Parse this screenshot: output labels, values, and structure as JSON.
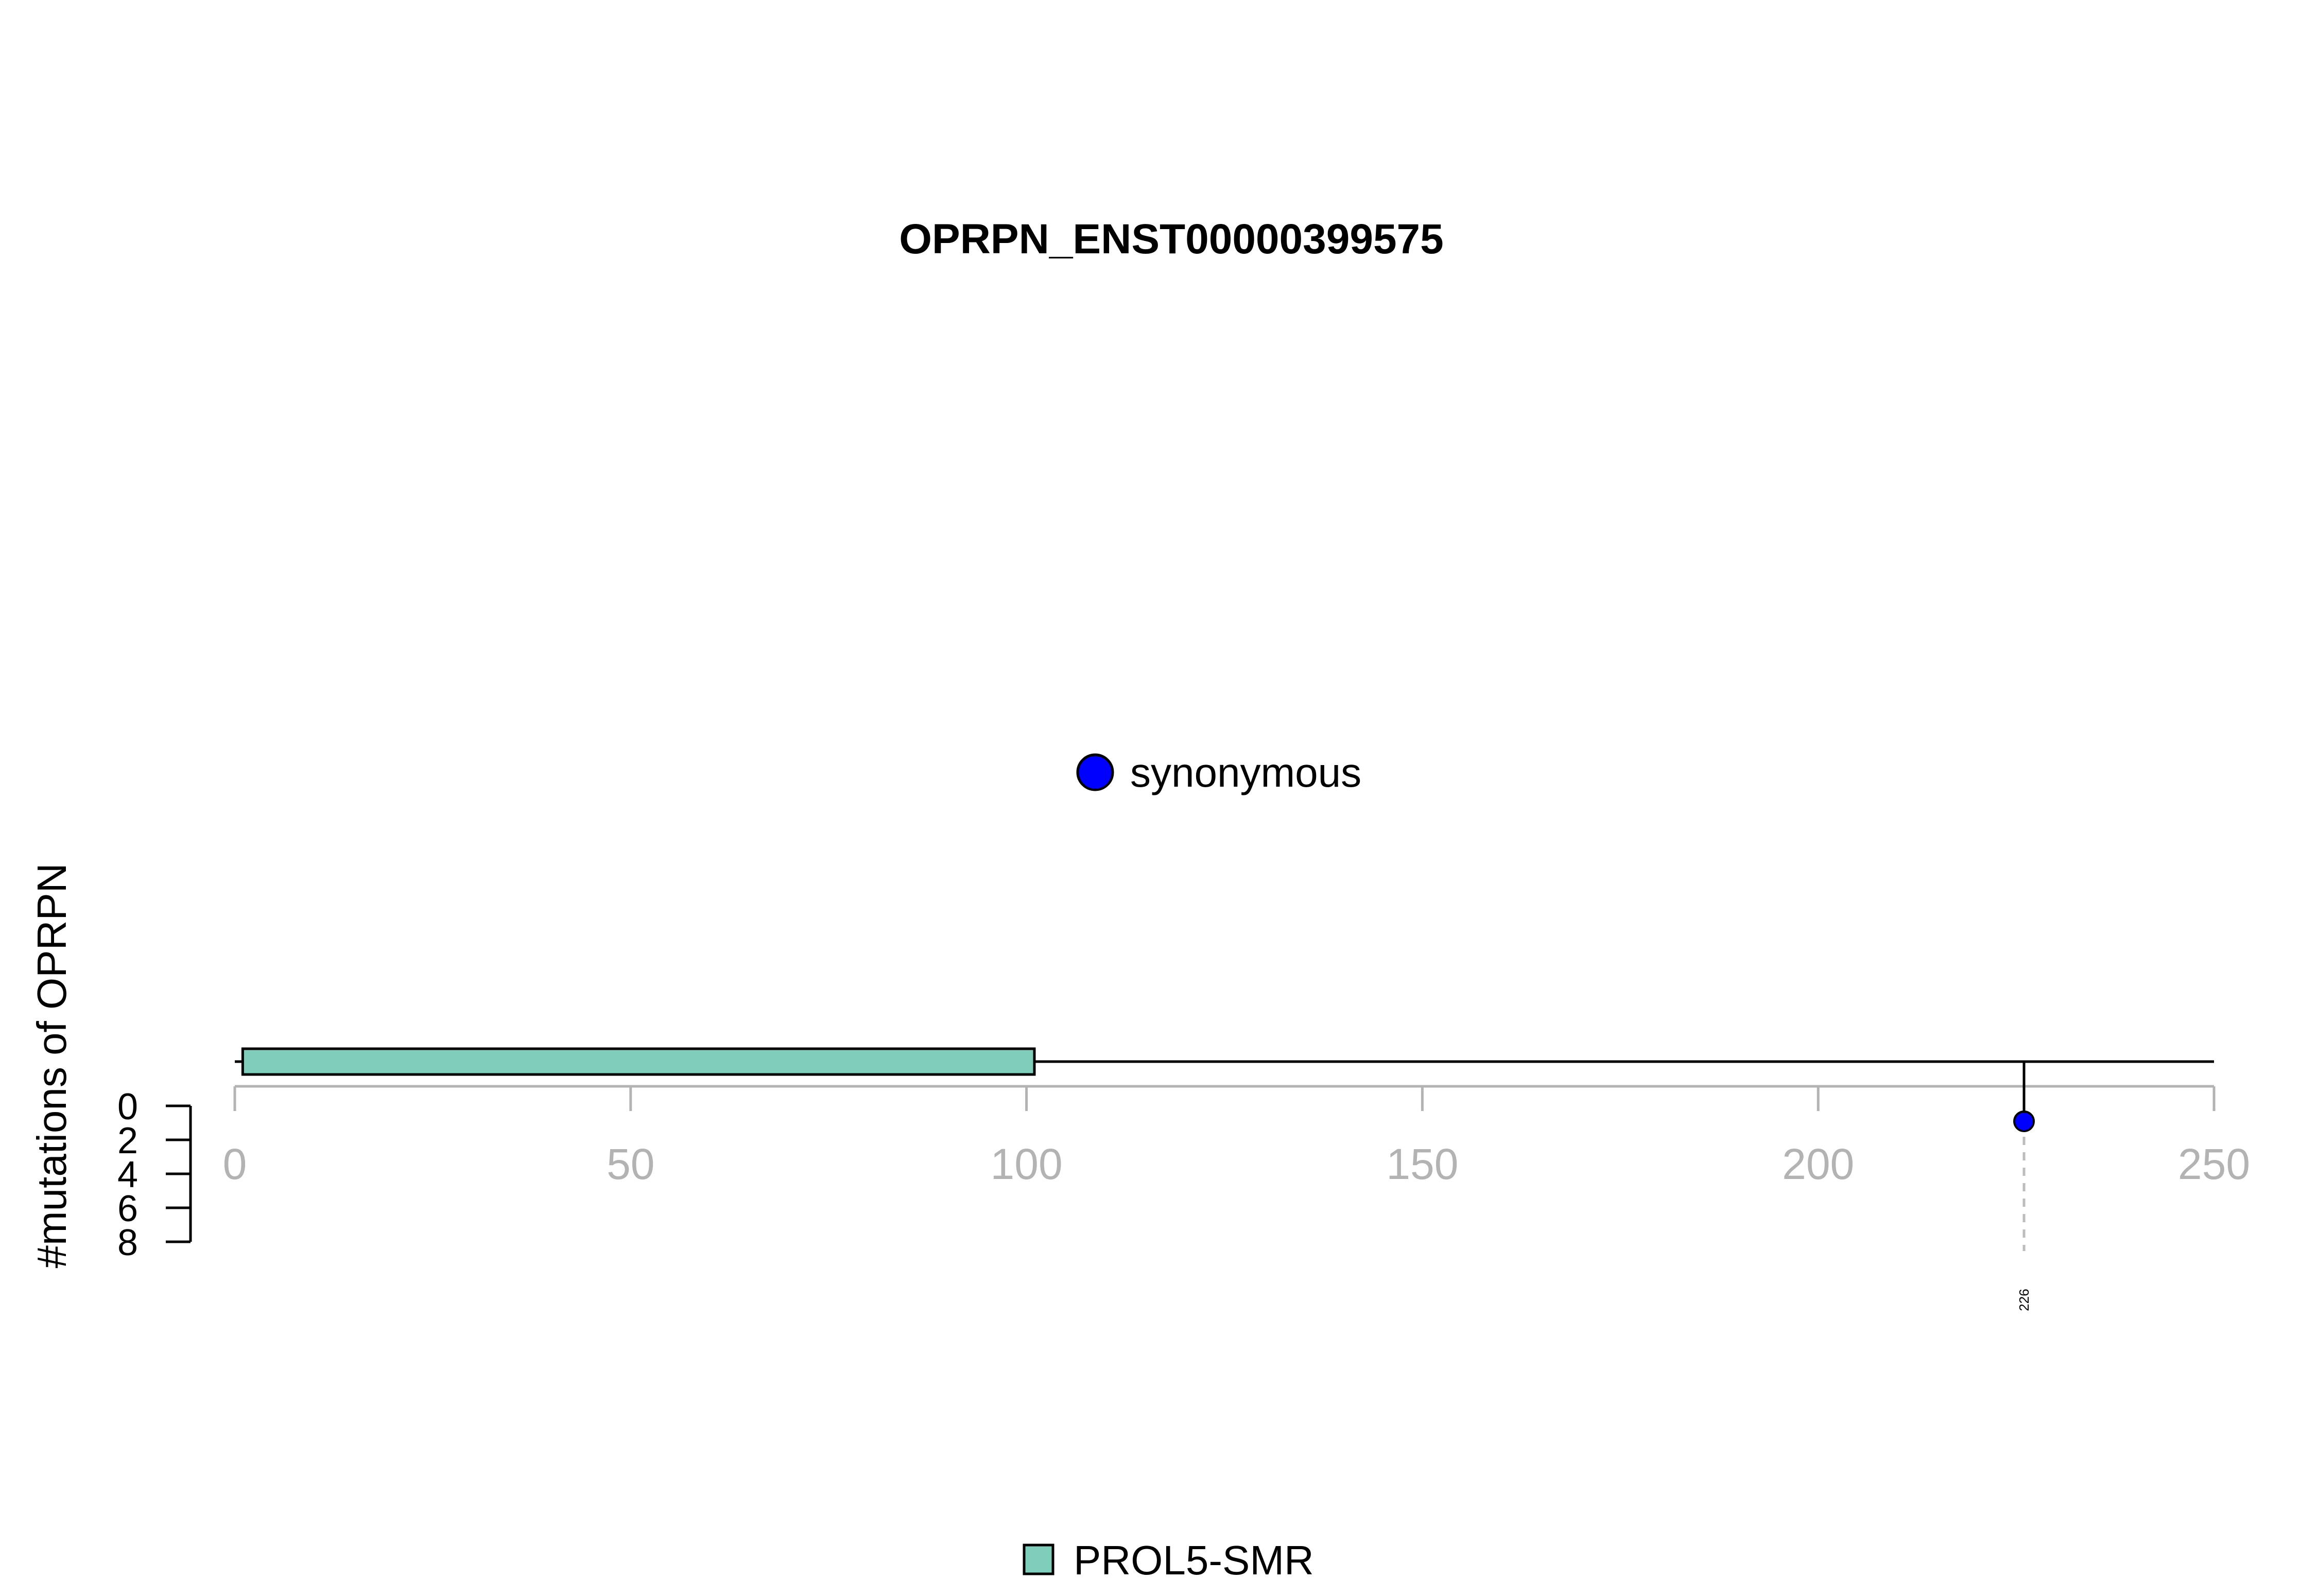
{
  "chart_data": {
    "type": "lollipop",
    "title": "OPRPN_ENST00000399575",
    "ylabel": "#mutations of OPRPN",
    "protein_length": 250,
    "xlim": [
      0,
      250
    ],
    "x_ticks": [
      "0",
      "50",
      "100",
      "150",
      "200",
      "250"
    ],
    "ylim": [
      0,
      8
    ],
    "y_ticks": [
      "0",
      "2",
      "4",
      "6",
      "8"
    ],
    "domains": [
      {
        "name": "PROL5-SMR",
        "start": 1,
        "end": 101,
        "color": "#7fcdbb"
      }
    ],
    "mutations": [
      {
        "position": 226,
        "count": 1,
        "type": "synonymous",
        "color": "#0000ff",
        "label": "226"
      }
    ],
    "mutation_legend": [
      {
        "label": "synonymous",
        "color": "#0000ff"
      }
    ],
    "domain_legend": [
      {
        "label": "PROL5-SMR",
        "color": "#7fcdbb"
      }
    ]
  }
}
